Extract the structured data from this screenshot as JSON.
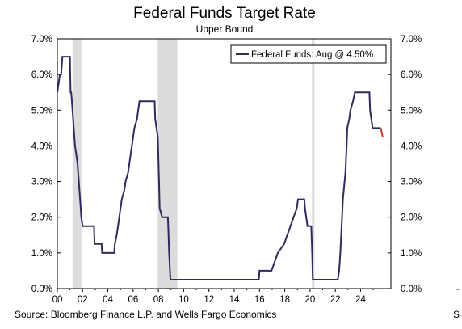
{
  "chart_data": {
    "type": "line",
    "title": "Federal Funds Target Rate",
    "subtitle": "Upper Bound",
    "source": "Source: Bloomberg Finance L.P. and Wells Fargo Economics",
    "trailing_text": "S",
    "trailing_dash": "-",
    "xlim": [
      2000,
      2026.4
    ],
    "ylim": [
      0,
      7
    ],
    "x_ticks": [
      {
        "value": 2000,
        "label": "00"
      },
      {
        "value": 2002,
        "label": "02"
      },
      {
        "value": 2004,
        "label": "04"
      },
      {
        "value": 2006,
        "label": "06"
      },
      {
        "value": 2008,
        "label": "08"
      },
      {
        "value": 2010,
        "label": "10"
      },
      {
        "value": 2012,
        "label": "12"
      },
      {
        "value": 2014,
        "label": "14"
      },
      {
        "value": 2016,
        "label": "16"
      },
      {
        "value": 2018,
        "label": "18"
      },
      {
        "value": 2020,
        "label": "20"
      },
      {
        "value": 2022,
        "label": "22"
      },
      {
        "value": 2024,
        "label": "24"
      }
    ],
    "y_ticks": [
      {
        "value": 0,
        "label": "0.0%"
      },
      {
        "value": 1,
        "label": "1.0%"
      },
      {
        "value": 2,
        "label": "2.0%"
      },
      {
        "value": 3,
        "label": "3.0%"
      },
      {
        "value": 4,
        "label": "4.0%"
      },
      {
        "value": 5,
        "label": "5.0%"
      },
      {
        "value": 6,
        "label": "6.0%"
      },
      {
        "value": 7,
        "label": "7.0%"
      }
    ],
    "recessions": [
      [
        2001.2,
        2001.9
      ],
      [
        2007.95,
        2009.5
      ],
      [
        2020.15,
        2020.35
      ]
    ],
    "legend": {
      "label": "Federal Funds: Aug @ 4.50%",
      "position": "top-right"
    },
    "colors": {
      "series": "#2e2b5f",
      "projection": "#c0392b",
      "recession": "#dcdcdc"
    },
    "series": [
      {
        "name": "Federal Funds: Aug @ 4.50%",
        "color": "#2e2b5f",
        "points": [
          [
            2000.0,
            5.5
          ],
          [
            2000.1,
            5.75
          ],
          [
            2000.2,
            6.0
          ],
          [
            2000.3,
            6.0
          ],
          [
            2000.4,
            6.5
          ],
          [
            2001.0,
            6.5
          ],
          [
            2001.05,
            5.5
          ],
          [
            2001.1,
            5.5
          ],
          [
            2001.2,
            5.0
          ],
          [
            2001.3,
            4.5
          ],
          [
            2001.4,
            4.0
          ],
          [
            2001.5,
            3.75
          ],
          [
            2001.6,
            3.5
          ],
          [
            2001.7,
            3.0
          ],
          [
            2001.8,
            2.5
          ],
          [
            2001.9,
            2.0
          ],
          [
            2002.0,
            1.75
          ],
          [
            2002.9,
            1.75
          ],
          [
            2002.95,
            1.25
          ],
          [
            2003.5,
            1.25
          ],
          [
            2003.55,
            1.0
          ],
          [
            2004.5,
            1.0
          ],
          [
            2004.55,
            1.25
          ],
          [
            2004.7,
            1.5
          ],
          [
            2004.8,
            1.75
          ],
          [
            2004.9,
            2.0
          ],
          [
            2005.0,
            2.25
          ],
          [
            2005.1,
            2.5
          ],
          [
            2005.3,
            2.75
          ],
          [
            2005.4,
            3.0
          ],
          [
            2005.6,
            3.25
          ],
          [
            2005.7,
            3.5
          ],
          [
            2005.8,
            3.75
          ],
          [
            2005.9,
            4.0
          ],
          [
            2006.0,
            4.25
          ],
          [
            2006.1,
            4.5
          ],
          [
            2006.3,
            4.75
          ],
          [
            2006.4,
            5.0
          ],
          [
            2006.5,
            5.25
          ],
          [
            2007.7,
            5.25
          ],
          [
            2007.75,
            4.75
          ],
          [
            2007.85,
            4.5
          ],
          [
            2007.95,
            4.25
          ],
          [
            2008.05,
            3.0
          ],
          [
            2008.1,
            2.25
          ],
          [
            2008.3,
            2.0
          ],
          [
            2008.75,
            2.0
          ],
          [
            2008.8,
            1.5
          ],
          [
            2008.85,
            1.0
          ],
          [
            2008.95,
            0.25
          ],
          [
            2015.95,
            0.25
          ],
          [
            2016.0,
            0.5
          ],
          [
            2016.95,
            0.5
          ],
          [
            2017.2,
            0.75
          ],
          [
            2017.45,
            1.0
          ],
          [
            2017.95,
            1.25
          ],
          [
            2018.2,
            1.5
          ],
          [
            2018.45,
            1.75
          ],
          [
            2018.7,
            2.0
          ],
          [
            2018.95,
            2.25
          ],
          [
            2019.05,
            2.5
          ],
          [
            2019.55,
            2.5
          ],
          [
            2019.6,
            2.25
          ],
          [
            2019.7,
            2.0
          ],
          [
            2019.8,
            1.75
          ],
          [
            2020.1,
            1.75
          ],
          [
            2020.17,
            1.0
          ],
          [
            2020.22,
            0.25
          ],
          [
            2022.2,
            0.25
          ],
          [
            2022.3,
            0.5
          ],
          [
            2022.4,
            1.0
          ],
          [
            2022.5,
            1.75
          ],
          [
            2022.6,
            2.5
          ],
          [
            2022.8,
            3.25
          ],
          [
            2022.9,
            4.0
          ],
          [
            2022.95,
            4.5
          ],
          [
            2023.1,
            4.75
          ],
          [
            2023.2,
            5.0
          ],
          [
            2023.4,
            5.25
          ],
          [
            2023.55,
            5.5
          ],
          [
            2024.7,
            5.5
          ],
          [
            2024.75,
            5.0
          ],
          [
            2024.85,
            4.75
          ],
          [
            2024.95,
            4.5
          ],
          [
            2025.6,
            4.5
          ]
        ]
      },
      {
        "name": "",
        "color": "#c0392b",
        "points": [
          [
            2025.6,
            4.5
          ],
          [
            2025.75,
            4.25
          ]
        ]
      }
    ]
  }
}
